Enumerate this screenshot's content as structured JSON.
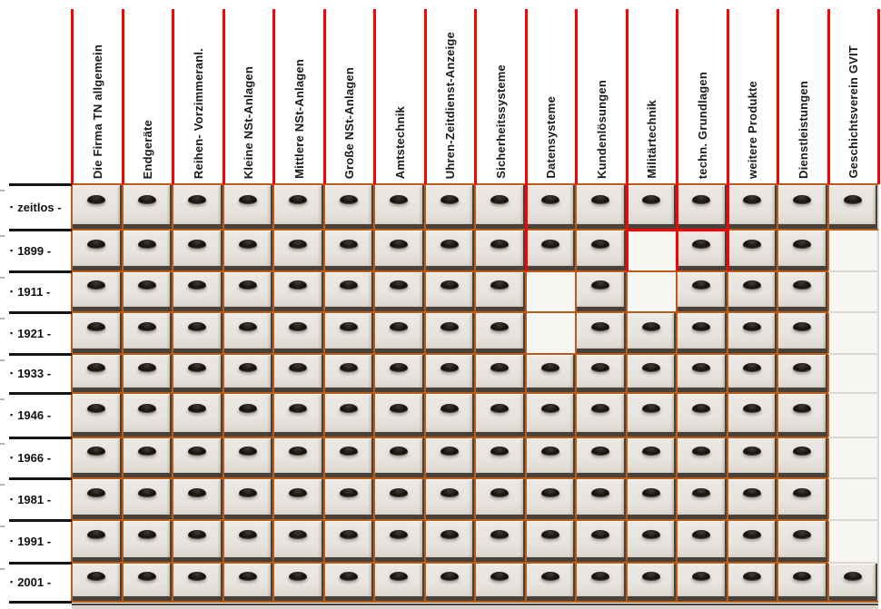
{
  "columns": [
    {
      "label": "Die Firma TN allgemein"
    },
    {
      "label": "Endgeräte"
    },
    {
      "label": "Reihen- Vorzimmeranl."
    },
    {
      "label": "Kleine NSt-Anlagen"
    },
    {
      "label": "Mittlere NSt-Anlagen"
    },
    {
      "label": "Große NSt-Anlagen"
    },
    {
      "label": "Amtstechnik"
    },
    {
      "label": "Uhren-Zeitdienst-Anzeige"
    },
    {
      "label": "Sicherheitssysteme"
    },
    {
      "label": "Datensysteme"
    },
    {
      "label": "Kundenlösungen"
    },
    {
      "label": "Militärtechnik"
    },
    {
      "label": "techn. Grundlagen"
    },
    {
      "label": "weitere Produkte"
    },
    {
      "label": "Dienstleistungen"
    },
    {
      "label": "Geschichtsverein GVIT"
    }
  ],
  "rows": [
    {
      "label": "zeitlos"
    },
    {
      "label": "1899"
    },
    {
      "label": "1911"
    },
    {
      "label": "1921"
    },
    {
      "label": "1933"
    },
    {
      "label": "1946"
    },
    {
      "label": "1966"
    },
    {
      "label": "1981"
    },
    {
      "label": "1991"
    },
    {
      "label": "2001"
    }
  ],
  "rows_meta": {
    "bullet": "▪",
    "suffix": " -"
  },
  "grid": {
    "filled": [
      [
        1,
        1,
        1,
        1,
        1,
        1,
        1,
        1,
        1,
        1,
        1,
        1,
        1,
        1,
        1,
        1
      ],
      [
        1,
        1,
        1,
        1,
        1,
        1,
        1,
        1,
        1,
        1,
        1,
        0,
        1,
        1,
        1,
        0
      ],
      [
        1,
        1,
        1,
        1,
        1,
        1,
        1,
        1,
        1,
        0,
        1,
        0,
        1,
        1,
        1,
        0
      ],
      [
        1,
        1,
        1,
        1,
        1,
        1,
        1,
        1,
        1,
        0,
        1,
        1,
        1,
        1,
        1,
        0
      ],
      [
        1,
        1,
        1,
        1,
        1,
        1,
        1,
        1,
        1,
        1,
        1,
        1,
        1,
        1,
        1,
        0
      ],
      [
        1,
        1,
        1,
        1,
        1,
        1,
        1,
        1,
        1,
        1,
        1,
        1,
        1,
        1,
        1,
        0
      ],
      [
        1,
        1,
        1,
        1,
        1,
        1,
        1,
        1,
        1,
        1,
        1,
        1,
        1,
        1,
        1,
        0
      ],
      [
        1,
        1,
        1,
        1,
        1,
        1,
        1,
        1,
        1,
        1,
        1,
        1,
        1,
        1,
        1,
        0
      ],
      [
        1,
        1,
        1,
        1,
        1,
        1,
        1,
        1,
        1,
        1,
        1,
        1,
        1,
        1,
        1,
        0
      ],
      [
        1,
        1,
        1,
        1,
        1,
        1,
        1,
        1,
        1,
        1,
        1,
        1,
        1,
        1,
        1,
        1
      ]
    ]
  },
  "icons": {
    "drawer_handle": "drawer-handle-icon"
  },
  "colors": {
    "header_separator": "#ff0000",
    "grid_line": "#bf5a14",
    "row_divider": "#141414",
    "highlight": "#ff0000",
    "drawer_face": "#e7e3de",
    "handle": "#17120e",
    "empty_cell": "#f7f6f3"
  },
  "highlight": {
    "vertical_lines": [
      {
        "at_column_boundary": 9,
        "from_row": 0,
        "to_row": 2
      },
      {
        "at_column_boundary": 11,
        "from_row": 0,
        "to_row": 2
      },
      {
        "at_column_boundary": 12,
        "from_row": 0,
        "to_row": 2
      },
      {
        "at_column_boundary": 13,
        "from_row": 0,
        "to_row": 2
      }
    ],
    "horizontal_lines": [
      {
        "at_row_boundary": 1,
        "from_column": 11,
        "to_column": 12
      }
    ]
  }
}
